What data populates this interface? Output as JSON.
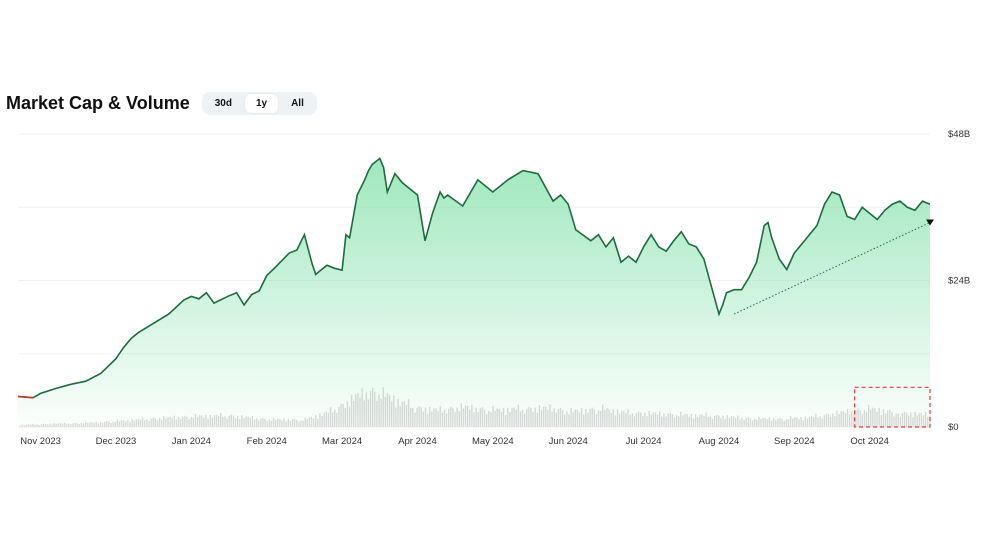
{
  "header": {
    "title": "Market Cap & Volume",
    "ranges": [
      {
        "label": "30d",
        "active": false
      },
      {
        "label": "1y",
        "active": true
      },
      {
        "label": "All",
        "active": false
      }
    ]
  },
  "colors": {
    "line": "#1e6b3e",
    "area_top": "#7fe0a8",
    "volume": "#d9d9d9",
    "highlight": "#e03c3c",
    "start_segment": "#c0392b"
  },
  "chart_data": {
    "type": "area",
    "title": "Market Cap & Volume",
    "xlabel": "",
    "ylabel": "",
    "x_ticks": [
      "Nov 2023",
      "Dec 2023",
      "Jan 2024",
      "Feb 2024",
      "Mar 2024",
      "Apr 2024",
      "May 2024",
      "Jun 2024",
      "Jul 2024",
      "Aug 2024",
      "Sep 2024",
      "Oct 2024"
    ],
    "y_ticks": [
      {
        "value": 0,
        "label": "$0"
      },
      {
        "value": 24,
        "label": "$24B"
      },
      {
        "value": 48,
        "label": "$48B"
      }
    ],
    "ylim": [
      0,
      48
    ],
    "xlim": [
      -0.3,
      11.8
    ],
    "grid": true,
    "series": [
      {
        "x": [
          -0.3,
          -0.1,
          0,
          0.2,
          0.4,
          0.6,
          0.8,
          1,
          1.1,
          1.2,
          1.3,
          1.5,
          1.7,
          1.9,
          2,
          2.1,
          2.2,
          2.3,
          2.5,
          2.6,
          2.7,
          2.8,
          2.9,
          3,
          3.1,
          3.3,
          3.4,
          3.5,
          3.6,
          3.65,
          3.7,
          3.8,
          3.9,
          4,
          4.05,
          4.1,
          4.2,
          4.3,
          4.35,
          4.4,
          4.5,
          4.55,
          4.6,
          4.7,
          4.8,
          5,
          5.1,
          5.2,
          5.3,
          5.35,
          5.4,
          5.6,
          5.8,
          6,
          6.2,
          6.4,
          6.6,
          6.8,
          6.9,
          7,
          7.1,
          7.3,
          7.4,
          7.5,
          7.6,
          7.7,
          7.8,
          7.9,
          8,
          8.1,
          8.2,
          8.3,
          8.4,
          8.5,
          8.6,
          8.7,
          8.8,
          8.9,
          9,
          9.05,
          9.1,
          9.2,
          9.3,
          9.4,
          9.5,
          9.6,
          9.65,
          9.7,
          9.8,
          9.9,
          10,
          10.1,
          10.2,
          10.3,
          10.4,
          10.5,
          10.6,
          10.7,
          10.8,
          10.9,
          11,
          11.1,
          11.2,
          11.3,
          11.4,
          11.5,
          11.6,
          11.7,
          11.8
        ],
        "values": [
          5.0,
          4.8,
          5.5,
          6.3,
          7.0,
          7.5,
          8.8,
          11.2,
          13.0,
          14.5,
          15.5,
          17.0,
          18.5,
          20.8,
          21.4,
          21.0,
          22.0,
          20.3,
          21.5,
          22.0,
          20.0,
          21.7,
          22.3,
          24.8,
          26.0,
          28.5,
          29.0,
          31.5,
          26.8,
          25.0,
          25.5,
          26.5,
          26.0,
          25.7,
          31.5,
          31.0,
          38.0,
          40.5,
          42.0,
          43.0,
          44.0,
          42.5,
          38.5,
          41.5,
          40.0,
          38.0,
          30.5,
          35.0,
          38.5,
          37.5,
          38.0,
          36.2,
          40.5,
          38.5,
          40.5,
          42.0,
          41.5,
          37.0,
          38.0,
          36.5,
          32.3,
          30.5,
          31.5,
          29.5,
          31.0,
          27.0,
          28.0,
          27.0,
          29.5,
          31.5,
          29.5,
          28.8,
          30.5,
          32.0,
          30.0,
          29.5,
          27.5,
          23.0,
          18.5,
          20.0,
          22.0,
          22.5,
          22.5,
          24.5,
          27.0,
          33.0,
          33.5,
          31.0,
          27.5,
          25.8,
          28.5,
          30.0,
          31.5,
          33.0,
          36.5,
          38.5,
          38.0,
          34.5,
          34.0,
          36.0,
          35.0,
          34.0,
          35.5,
          36.5,
          37.0,
          36.0,
          35.5,
          37.0,
          36.5
        ]
      }
    ],
    "volume": {
      "x": [
        -0.3,
        0,
        0.5,
        1,
        1.5,
        2,
        2.5,
        3,
        3.5,
        3.8,
        4,
        4.2,
        4.4,
        4.6,
        4.8,
        5,
        5.3,
        5.6,
        6,
        6.4,
        6.8,
        7,
        7.4,
        7.8,
        8.2,
        8.6,
        9,
        9.4,
        9.8,
        10.2,
        10.6,
        11,
        11.4,
        11.8
      ],
      "values": [
        0.4,
        0.6,
        0.8,
        1.2,
        1.8,
        2.2,
        2.4,
        1.6,
        1.5,
        3.0,
        4.5,
        6.5,
        7.5,
        6.5,
        5.0,
        4.0,
        3.5,
        4.2,
        3.5,
        3.8,
        4.0,
        3.2,
        3.8,
        3.0,
        2.8,
        2.5,
        2.3,
        1.8,
        1.7,
        2.0,
        3.0,
        3.8,
        3.0,
        2.5
      ]
    },
    "annotations": [
      {
        "type": "dotted-trendline",
        "from": [
          9.2,
          18.5
        ],
        "to": [
          11.8,
          33.5
        ],
        "marker": "triangle-down"
      },
      {
        "type": "dashed-highlight-box",
        "x_range": [
          10.8,
          11.8
        ],
        "y_range": [
          0,
          6.5
        ]
      }
    ]
  }
}
